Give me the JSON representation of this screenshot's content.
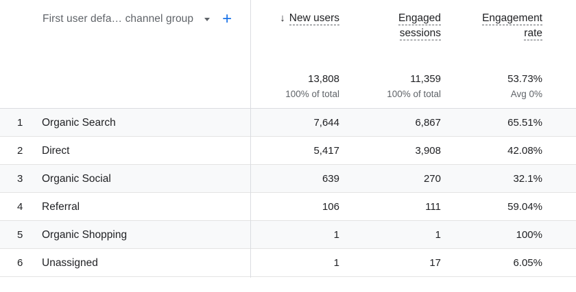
{
  "dimension_header": {
    "label": "First user defa… channel group"
  },
  "metrics": [
    {
      "label_lines": [
        "New users"
      ],
      "sorted": true,
      "sort_arrow": "↓"
    },
    {
      "label_lines": [
        "Engaged",
        "sessions"
      ],
      "sorted": false
    },
    {
      "label_lines": [
        "Engagement",
        "rate"
      ],
      "sorted": false
    }
  ],
  "totals": [
    {
      "value": "13,808",
      "sub": "100% of total"
    },
    {
      "value": "11,359",
      "sub": "100% of total"
    },
    {
      "value": "53.73%",
      "sub": "Avg 0%"
    }
  ],
  "rows": [
    {
      "index": "1",
      "name": "Organic Search",
      "values": [
        "7,644",
        "6,867",
        "65.51%"
      ]
    },
    {
      "index": "2",
      "name": "Direct",
      "values": [
        "5,417",
        "3,908",
        "42.08%"
      ]
    },
    {
      "index": "3",
      "name": "Organic Social",
      "values": [
        "639",
        "270",
        "32.1%"
      ]
    },
    {
      "index": "4",
      "name": "Referral",
      "values": [
        "106",
        "111",
        "59.04%"
      ]
    },
    {
      "index": "5",
      "name": "Organic Shopping",
      "values": [
        "1",
        "1",
        "100%"
      ]
    },
    {
      "index": "6",
      "name": "Unassigned",
      "values": [
        "1",
        "17",
        "6.05%"
      ]
    }
  ],
  "icons": {
    "dropdown": "caret-down-icon",
    "add": "plus-icon",
    "sort": "arrow-down-icon"
  },
  "colors": {
    "accent": "#1a73e8",
    "row_shade": "#f8f9fa",
    "divider": "#dadce0"
  }
}
